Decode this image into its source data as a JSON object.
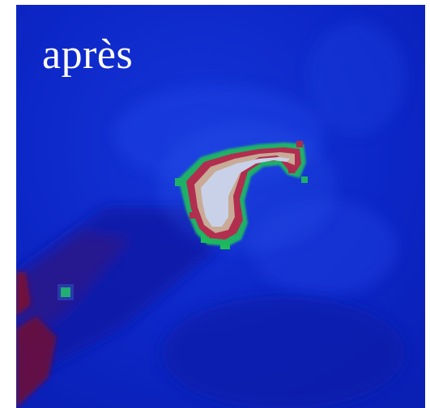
{
  "caption": "après",
  "palette": {
    "background": "#0b24c8",
    "hot_core": "#fffbe8",
    "warm": "#ffd79a",
    "red": "#e0201a",
    "green": "#19d23a",
    "dark_red": "#7a1030"
  }
}
